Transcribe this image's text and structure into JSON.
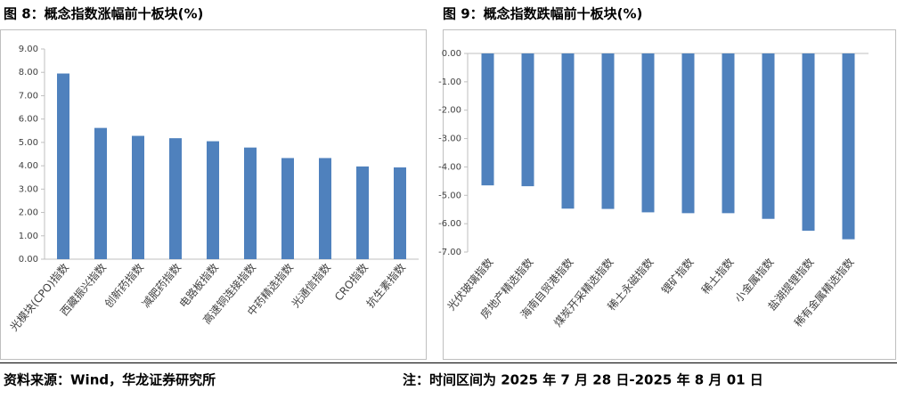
{
  "chart_data": [
    {
      "type": "bar",
      "title": "图 8：概念指数涨幅前十板块(%)",
      "categories": [
        "光模块(CPO)指数",
        "西藏振兴指数",
        "创新药指数",
        "减肥药指数",
        "电路板指数",
        "高速铜连接指数",
        "中药精选指数",
        "光通信指数",
        "CRO指数",
        "抗生素指数"
      ],
      "values": [
        7.95,
        5.62,
        5.28,
        5.18,
        5.05,
        4.78,
        4.33,
        4.33,
        3.97,
        3.93
      ],
      "color": "#4f81bd",
      "ylim": [
        0,
        9
      ],
      "yticks": [
        {
          "value": 0,
          "label": "0.00"
        },
        {
          "value": 1,
          "label": "1.00"
        },
        {
          "value": 2,
          "label": "2.00"
        },
        {
          "value": 3,
          "label": "3.00"
        },
        {
          "value": 4,
          "label": "4.00"
        },
        {
          "value": 5,
          "label": "5.00"
        },
        {
          "value": 6,
          "label": "6.00"
        },
        {
          "value": 7,
          "label": "7.00"
        },
        {
          "value": 8,
          "label": "8.00"
        },
        {
          "value": 9,
          "label": "9.00"
        }
      ],
      "grid": false
    },
    {
      "type": "bar",
      "title": "图 9：概念指数跌幅前十板块(%)",
      "categories": [
        "光伏玻璃指数",
        "房地产精选指数",
        "海南自贸港指数",
        "煤炭开采精选指数",
        "稀土永磁指数",
        "锂矿指数",
        "稀土指数",
        "小金属指数",
        "盐湖提锂指数",
        "稀有金属精选指数"
      ],
      "values": [
        -4.65,
        -4.68,
        -5.47,
        -5.48,
        -5.6,
        -5.63,
        -5.63,
        -5.83,
        -6.25,
        -6.55
      ],
      "color": "#4f81bd",
      "ylim": [
        -7,
        0
      ],
      "yticks": [
        {
          "value": 0,
          "label": "0.00"
        },
        {
          "value": -1,
          "label": "-1.00"
        },
        {
          "value": -2,
          "label": "-2.00"
        },
        {
          "value": -3,
          "label": "-3.00"
        },
        {
          "value": -4,
          "label": "-4.00"
        },
        {
          "value": -5,
          "label": "-5.00"
        },
        {
          "value": -6,
          "label": "-6.00"
        },
        {
          "value": -7,
          "label": "-7.00"
        }
      ],
      "grid": false
    }
  ],
  "footer": {
    "source": "资料来源：Wind，华龙证券研究所",
    "note": "注：时间区间为 2025 年 7 月 28 日-2025 年 8 月 01 日"
  }
}
